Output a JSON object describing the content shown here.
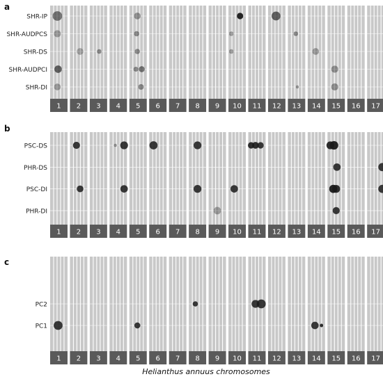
{
  "figure": {
    "xlabel": "Helianthus annuus chromosomes",
    "chromosomes": [
      "1",
      "2",
      "3",
      "4",
      "5",
      "6",
      "7",
      "8",
      "9",
      "10",
      "11",
      "12",
      "13",
      "14",
      "15",
      "16",
      "17"
    ]
  },
  "colors": {
    "panel_bg": "#c8c8c8",
    "stripe": "#ffffff",
    "strip_bg": "#5a5a5a",
    "strip_text": "#ffffff",
    "point": "#1a1a1a"
  },
  "chart_data": [
    {
      "type": "scatter",
      "panel": "a",
      "title": "",
      "traits": [
        "SHR-IP",
        "SHR-AUDPCS",
        "SHR-DS",
        "SHR-AUDPCI",
        "SHR-DI"
      ],
      "points": [
        {
          "trait": "SHR-IP",
          "chr": 1,
          "pos": 0.4,
          "size": 2.2,
          "shade": 0.55
        },
        {
          "trait": "SHR-IP",
          "chr": 5,
          "pos": 0.45,
          "size": 1.4,
          "shade": 0.4
        },
        {
          "trait": "SHR-IP",
          "chr": 10,
          "pos": 0.7,
          "size": 1.3,
          "shade": 0.95
        },
        {
          "trait": "SHR-IP",
          "chr": 12,
          "pos": 0.45,
          "size": 2.0,
          "shade": 0.65
        },
        {
          "trait": "SHR-AUDPCS",
          "chr": 1,
          "pos": 0.4,
          "size": 1.5,
          "shade": 0.35
        },
        {
          "trait": "SHR-AUDPCS",
          "chr": 5,
          "pos": 0.4,
          "size": 1.0,
          "shade": 0.45
        },
        {
          "trait": "SHR-AUDPCS",
          "chr": 10,
          "pos": 0.1,
          "size": 0.8,
          "shade": 0.35
        },
        {
          "trait": "SHR-AUDPCS",
          "chr": 13,
          "pos": 0.45,
          "size": 0.8,
          "shade": 0.45
        },
        {
          "trait": "SHR-DS",
          "chr": 2,
          "pos": 0.6,
          "size": 1.4,
          "shade": 0.3
        },
        {
          "trait": "SHR-DS",
          "chr": 3,
          "pos": 0.55,
          "size": 0.8,
          "shade": 0.45
        },
        {
          "trait": "SHR-DS",
          "chr": 5,
          "pos": 0.45,
          "size": 1.0,
          "shade": 0.45
        },
        {
          "trait": "SHR-DS",
          "chr": 10,
          "pos": 0.1,
          "size": 0.8,
          "shade": 0.35
        },
        {
          "trait": "SHR-DS",
          "chr": 14,
          "pos": 0.45,
          "size": 1.4,
          "shade": 0.35
        },
        {
          "trait": "SHR-AUDPCI",
          "chr": 1,
          "pos": 0.45,
          "size": 1.6,
          "shade": 0.65
        },
        {
          "trait": "SHR-AUDPCI",
          "chr": 5,
          "pos": 0.35,
          "size": 0.9,
          "shade": 0.45
        },
        {
          "trait": "SHR-AUDPCI",
          "chr": 5,
          "pos": 0.75,
          "size": 1.2,
          "shade": 0.55
        },
        {
          "trait": "SHR-AUDPCI",
          "chr": 15,
          "pos": 0.4,
          "size": 1.5,
          "shade": 0.4
        },
        {
          "trait": "SHR-DI",
          "chr": 1,
          "pos": 0.4,
          "size": 1.4,
          "shade": 0.35
        },
        {
          "trait": "SHR-DI",
          "chr": 5,
          "pos": 0.7,
          "size": 1.1,
          "shade": 0.45
        },
        {
          "trait": "SHR-DI",
          "chr": 13,
          "pos": 0.55,
          "size": 0.4,
          "shade": 0.4
        },
        {
          "trait": "SHR-DI",
          "chr": 15,
          "pos": 0.4,
          "size": 1.5,
          "shade": 0.4
        }
      ]
    },
    {
      "type": "scatter",
      "panel": "b",
      "title": "",
      "traits": [
        "PSC-DS",
        "PHR-DS",
        "PSC-DI",
        "PHR-DI"
      ],
      "points": [
        {
          "trait": "PSC-DS",
          "chr": 2,
          "pos": 0.35,
          "size": 1.5,
          "shade": 0.85
        },
        {
          "trait": "PSC-DS",
          "chr": 4,
          "pos": 0.3,
          "size": 0.4,
          "shade": 0.4
        },
        {
          "trait": "PSC-DS",
          "chr": 4,
          "pos": 0.9,
          "size": 1.7,
          "shade": 0.85
        },
        {
          "trait": "PSC-DS",
          "chr": 6,
          "pos": 0.2,
          "size": 1.8,
          "shade": 0.85
        },
        {
          "trait": "PSC-DS",
          "chr": 8,
          "pos": 0.5,
          "size": 1.7,
          "shade": 0.85
        },
        {
          "trait": "PSC-DS",
          "chr": 11,
          "pos": 0.1,
          "size": 1.3,
          "shade": 0.9
        },
        {
          "trait": "PSC-DS",
          "chr": 11,
          "pos": 0.4,
          "size": 1.4,
          "shade": 0.9
        },
        {
          "trait": "PSC-DS",
          "chr": 11,
          "pos": 0.75,
          "size": 1.3,
          "shade": 0.85
        },
        {
          "trait": "PSC-DS",
          "chr": 15,
          "pos": 0.1,
          "size": 1.7,
          "shade": 0.9
        },
        {
          "trait": "PSC-DS",
          "chr": 15,
          "pos": 0.35,
          "size": 1.9,
          "shade": 0.95
        },
        {
          "trait": "PHR-DS",
          "chr": 15,
          "pos": 0.55,
          "size": 1.6,
          "shade": 0.85
        },
        {
          "trait": "PHR-DS",
          "chr": 17,
          "pos": 0.95,
          "size": 1.8,
          "shade": 0.85
        },
        {
          "trait": "PSC-DI",
          "chr": 2,
          "pos": 0.6,
          "size": 1.4,
          "shade": 0.85
        },
        {
          "trait": "PSC-DI",
          "chr": 4,
          "pos": 0.9,
          "size": 1.6,
          "shade": 0.85
        },
        {
          "trait": "PSC-DI",
          "chr": 8,
          "pos": 0.5,
          "size": 1.7,
          "shade": 0.85
        },
        {
          "trait": "PSC-DI",
          "chr": 10,
          "pos": 0.3,
          "size": 1.6,
          "shade": 0.85
        },
        {
          "trait": "PSC-DI",
          "chr": 15,
          "pos": 0.3,
          "size": 1.8,
          "shade": 0.95
        },
        {
          "trait": "PSC-DI",
          "chr": 15,
          "pos": 0.5,
          "size": 1.7,
          "shade": 0.9
        },
        {
          "trait": "PSC-DI",
          "chr": 17,
          "pos": 0.95,
          "size": 1.8,
          "shade": 0.85
        },
        {
          "trait": "PHR-DI",
          "chr": 9,
          "pos": 0.5,
          "size": 1.6,
          "shade": 0.35
        },
        {
          "trait": "PHR-DI",
          "chr": 15,
          "pos": 0.5,
          "size": 1.5,
          "shade": 0.85
        }
      ]
    },
    {
      "type": "scatter",
      "panel": "c",
      "title": "",
      "traits": [
        "PC2",
        "PC1"
      ],
      "points": [
        {
          "trait": "PC2",
          "chr": 8,
          "pos": 0.35,
          "size": 1.0,
          "shade": 0.85
        },
        {
          "trait": "PC2",
          "chr": 11,
          "pos": 0.4,
          "size": 1.7,
          "shade": 0.85
        },
        {
          "trait": "PC2",
          "chr": 11,
          "pos": 0.8,
          "size": 2.0,
          "shade": 0.85
        },
        {
          "trait": "PC1",
          "chr": 1,
          "pos": 0.45,
          "size": 2.0,
          "shade": 0.85
        },
        {
          "trait": "PC1",
          "chr": 5,
          "pos": 0.45,
          "size": 1.2,
          "shade": 0.85
        },
        {
          "trait": "PC1",
          "chr": 14,
          "pos": 0.4,
          "size": 1.6,
          "shade": 0.85
        },
        {
          "trait": "PC1",
          "chr": 14,
          "pos": 0.85,
          "size": 0.5,
          "shade": 0.9
        }
      ]
    }
  ]
}
